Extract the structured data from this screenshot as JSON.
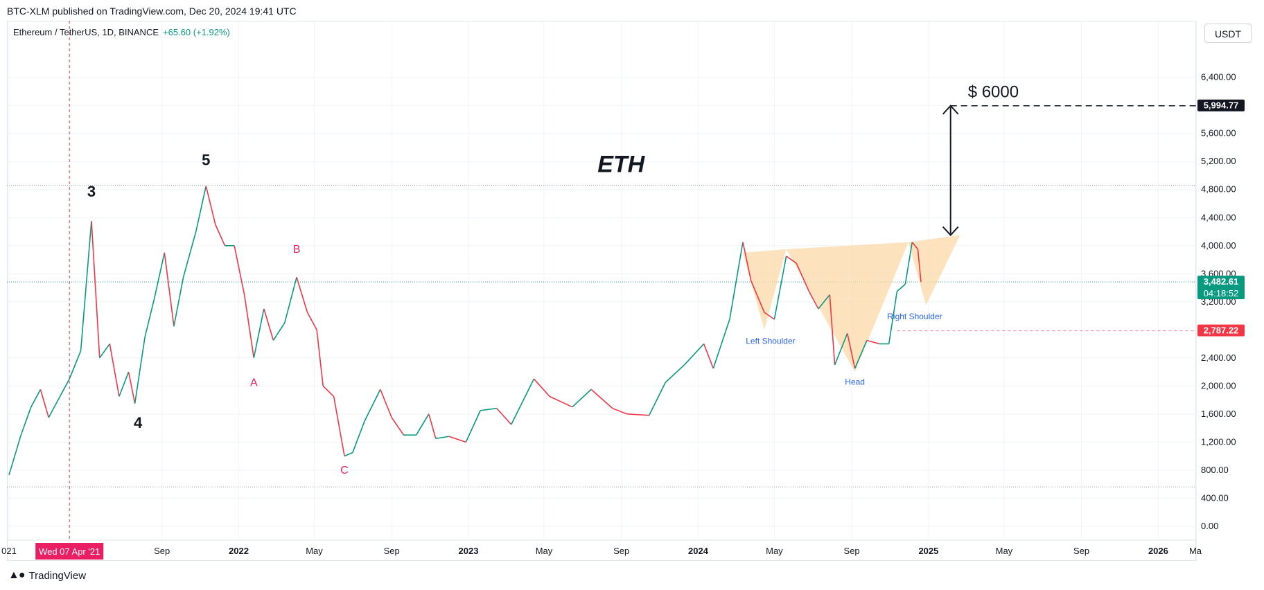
{
  "header": {
    "published": "BTC-XLM published on TradingView.com, Dec 20, 2024 19:41 UTC",
    "symbol": "Ethereum / TetherUS, 1D, BINANCE",
    "change": "+65.60 (+1.92%)",
    "currency": "USDT"
  },
  "footer": {
    "brand": "TradingView"
  },
  "colors": {
    "up": "#089981",
    "down": "#f23645",
    "pattern": "#fbd9a8",
    "labels_blue": "#2962ff",
    "labels_pink": "#e91e63"
  },
  "chart_data": {
    "type": "line",
    "title": "ETH",
    "ylim": [
      -100,
      6950
    ],
    "y_ticks": [
      "6,400.00",
      "6,000.00",
      "5,600.00",
      "5,200.00",
      "4,800.00",
      "4,400.00",
      "4,000.00",
      "3,600.00",
      "3,200.00",
      "2,400.00",
      "2,000.00",
      "1,600.00",
      "1,200.00",
      "800.00",
      "400.00",
      "0.00"
    ],
    "y_tick_values": [
      6400,
      6000,
      5600,
      5200,
      4800,
      4400,
      4000,
      3600,
      3200,
      2400,
      2000,
      1600,
      1200,
      800,
      400,
      0
    ],
    "x_ticks": [
      "021",
      "Sep",
      "2022",
      "May",
      "Sep",
      "2023",
      "May",
      "Sep",
      "2024",
      "May",
      "Sep",
      "2025",
      "May",
      "Sep",
      "2026",
      "Ma"
    ],
    "x_tick_dates": [
      "2021-01-01",
      "2021-09-01",
      "2022-01-01",
      "2022-05-01",
      "2022-09-01",
      "2023-01-01",
      "2023-05-01",
      "2023-09-01",
      "2024-01-01",
      "2024-05-01",
      "2024-09-01",
      "2025-01-01",
      "2025-05-01",
      "2025-09-01",
      "2026-01-01",
      "2026-03-01"
    ],
    "crosshair_date_label": "Wed 07 Apr '21",
    "crosshair_date": "2021-04-07",
    "price_labels": {
      "target": "5,994.77",
      "current": "3,482.61",
      "countdown": "04:18:52",
      "level": "2,787.22"
    },
    "price_values": {
      "target": 5994.77,
      "current": 3482.61,
      "level": 2787.22,
      "top_line": 4860,
      "bottom_line": 560
    },
    "price_series": [
      [
        "2021-01-01",
        730
      ],
      [
        "2021-01-20",
        1300
      ],
      [
        "2021-02-05",
        1700
      ],
      [
        "2021-02-20",
        1950
      ],
      [
        "2021-03-05",
        1550
      ],
      [
        "2021-03-20",
        1800
      ],
      [
        "2021-04-07",
        2100
      ],
      [
        "2021-04-25",
        2500
      ],
      [
        "2021-05-12",
        4350
      ],
      [
        "2021-05-25",
        2400
      ],
      [
        "2021-06-10",
        2600
      ],
      [
        "2021-06-25",
        1850
      ],
      [
        "2021-07-10",
        2200
      ],
      [
        "2021-07-20",
        1750
      ],
      [
        "2021-08-05",
        2700
      ],
      [
        "2021-08-20",
        3250
      ],
      [
        "2021-09-05",
        3900
      ],
      [
        "2021-09-20",
        2850
      ],
      [
        "2021-10-05",
        3550
      ],
      [
        "2021-10-25",
        4200
      ],
      [
        "2021-11-10",
        4850
      ],
      [
        "2021-11-25",
        4300
      ],
      [
        "2021-12-10",
        4000
      ],
      [
        "2021-12-25",
        4000
      ],
      [
        "2022-01-10",
        3300
      ],
      [
        "2022-01-25",
        2400
      ],
      [
        "2022-02-10",
        3100
      ],
      [
        "2022-02-25",
        2650
      ],
      [
        "2022-03-15",
        2900
      ],
      [
        "2022-04-03",
        3550
      ],
      [
        "2022-04-20",
        3050
      ],
      [
        "2022-05-05",
        2800
      ],
      [
        "2022-05-15",
        2000
      ],
      [
        "2022-06-01",
        1850
      ],
      [
        "2022-06-18",
        1000
      ],
      [
        "2022-07-01",
        1050
      ],
      [
        "2022-07-20",
        1500
      ],
      [
        "2022-08-14",
        1950
      ],
      [
        "2022-09-01",
        1550
      ],
      [
        "2022-09-20",
        1300
      ],
      [
        "2022-10-10",
        1300
      ],
      [
        "2022-10-30",
        1600
      ],
      [
        "2022-11-10",
        1250
      ],
      [
        "2022-12-01",
        1280
      ],
      [
        "2022-12-28",
        1200
      ],
      [
        "2023-01-20",
        1650
      ],
      [
        "2023-02-15",
        1680
      ],
      [
        "2023-03-10",
        1450
      ],
      [
        "2023-04-15",
        2100
      ],
      [
        "2023-05-10",
        1850
      ],
      [
        "2023-06-15",
        1700
      ],
      [
        "2023-07-15",
        1950
      ],
      [
        "2023-08-18",
        1680
      ],
      [
        "2023-09-10",
        1600
      ],
      [
        "2023-10-15",
        1580
      ],
      [
        "2023-11-10",
        2050
      ],
      [
        "2023-12-10",
        2300
      ],
      [
        "2024-01-10",
        2600
      ],
      [
        "2024-01-25",
        2250
      ],
      [
        "2024-02-20",
        2950
      ],
      [
        "2024-03-12",
        4050
      ],
      [
        "2024-03-25",
        3500
      ],
      [
        "2024-04-15",
        3050
      ],
      [
        "2024-05-01",
        2950
      ],
      [
        "2024-05-20",
        3850
      ],
      [
        "2024-06-05",
        3750
      ],
      [
        "2024-06-25",
        3350
      ],
      [
        "2024-07-10",
        3100
      ],
      [
        "2024-07-28",
        3300
      ],
      [
        "2024-08-05",
        2300
      ],
      [
        "2024-08-25",
        2750
      ],
      [
        "2024-09-06",
        2250
      ],
      [
        "2024-09-25",
        2650
      ],
      [
        "2024-10-15",
        2600
      ],
      [
        "2024-10-30",
        2600
      ],
      [
        "2024-11-12",
        3350
      ],
      [
        "2024-11-25",
        3450
      ],
      [
        "2024-12-06",
        4050
      ],
      [
        "2024-12-15",
        3950
      ],
      [
        "2024-12-20",
        3482.61
      ]
    ],
    "annotations": {
      "chart_label": "ETH",
      "target_text": "$ 6000",
      "waves": [
        {
          "label": "3",
          "date": "2021-05-12",
          "price": 4700
        },
        {
          "label": "4",
          "date": "2021-07-25",
          "price": 1400
        },
        {
          "label": "5",
          "date": "2021-11-10",
          "price": 5150
        }
      ],
      "corrective": [
        {
          "label": "A",
          "date": "2022-01-25",
          "price": 2000
        },
        {
          "label": "B",
          "date": "2022-04-03",
          "price": 3900
        },
        {
          "label": "C",
          "date": "2022-06-18",
          "price": 750
        }
      ],
      "pattern_labels": [
        {
          "label": "Left Shoulder",
          "date": "2024-04-25",
          "price": 2600
        },
        {
          "label": "Head",
          "date": "2024-09-06",
          "price": 2020
        },
        {
          "label": "Right Shoulder",
          "date": "2024-12-10",
          "price": 2950
        }
      ]
    }
  }
}
